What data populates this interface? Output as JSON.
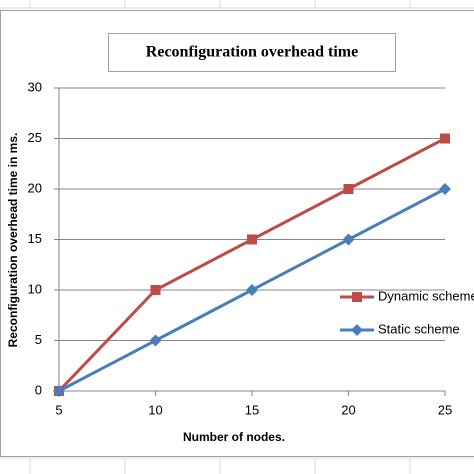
{
  "chart_data": {
    "type": "line",
    "title": "Reconfiguration overhead time",
    "x_label": "Number of nodes.",
    "y_label": "Reconfiguration overhead time in ms.",
    "x": [
      5,
      10,
      15,
      20,
      25
    ],
    "xlim": [
      5,
      25
    ],
    "xticks": [
      5,
      10,
      15,
      20,
      25
    ],
    "ylim": [
      0,
      30
    ],
    "yticks": [
      0,
      5,
      10,
      15,
      20,
      25,
      30
    ],
    "grid": true,
    "series": [
      {
        "name": "Dynamic scheme",
        "color": "#be4b48",
        "marker": "square",
        "values": [
          0,
          10,
          15,
          20,
          25
        ]
      },
      {
        "name": "Static scheme",
        "color": "#4a7ebb",
        "marker": "diamond",
        "values": [
          0,
          5,
          10,
          15,
          20
        ]
      }
    ]
  }
}
